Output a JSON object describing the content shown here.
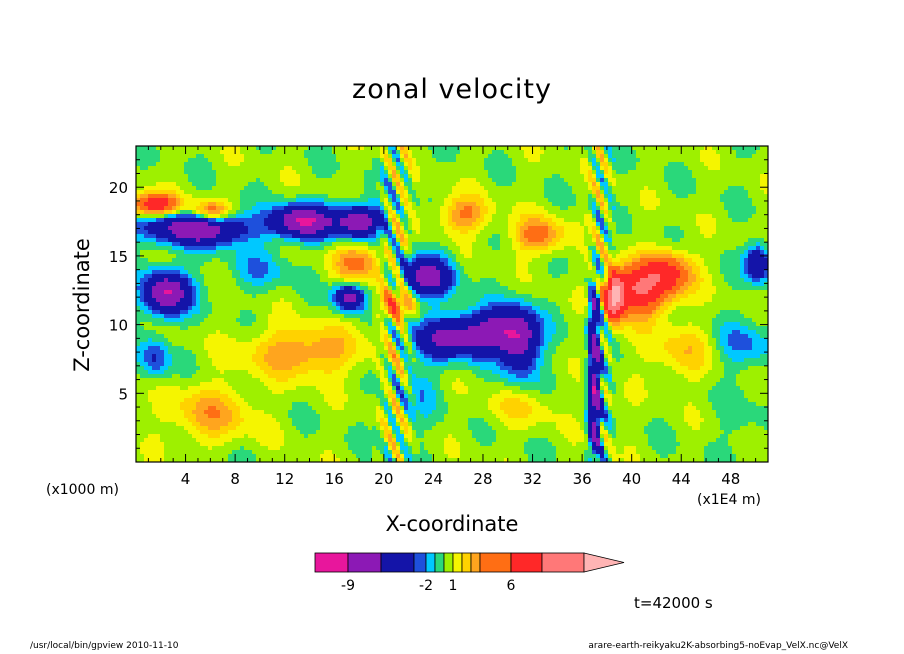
{
  "chart_data": {
    "type": "heatmap",
    "title": "zonal velocity",
    "xlabel": "X-coordinate",
    "ylabel": "Z-coordinate",
    "x_unit_label": "(x1E4 m)",
    "y_unit_label": "(x1000 m)",
    "xlim": [
      0,
      51
    ],
    "ylim": [
      0,
      23
    ],
    "x_ticks": [
      "4",
      "8",
      "12",
      "16",
      "20",
      "24",
      "28",
      "32",
      "36",
      "40",
      "44",
      "48"
    ],
    "x_tick_values": [
      4,
      8,
      12,
      16,
      20,
      24,
      28,
      32,
      36,
      40,
      44,
      48
    ],
    "y_ticks": [
      "5",
      "10",
      "15",
      "20"
    ],
    "y_tick_values": [
      5,
      10,
      15,
      20
    ],
    "colorbar": {
      "levels": [
        -12,
        -9,
        -6,
        -3,
        -2,
        -1,
        0,
        1,
        2,
        3,
        4,
        6,
        9,
        12
      ],
      "colors": [
        "#e8169c",
        "#8c19b5",
        "#1414a8",
        "#1e50dc",
        "#00c8ff",
        "#2ad87a",
        "#9ef000",
        "#f5f500",
        "#ffd200",
        "#ffa51e",
        "#ff6e14",
        "#ff2828",
        "#ff7878"
      ],
      "extend_color": "#ffb4b4",
      "labels": [
        "-9",
        "-2",
        "1",
        "6"
      ],
      "label_values": [
        -9,
        -2,
        1,
        6
      ]
    },
    "time_label": "t=42000 s"
  },
  "footer": {
    "left": "/usr/local/bin/gpview  2010-11-10",
    "right": "arare-earth-reikyaku2K-absorbing5-noEvap_VelX.nc@VelX"
  }
}
